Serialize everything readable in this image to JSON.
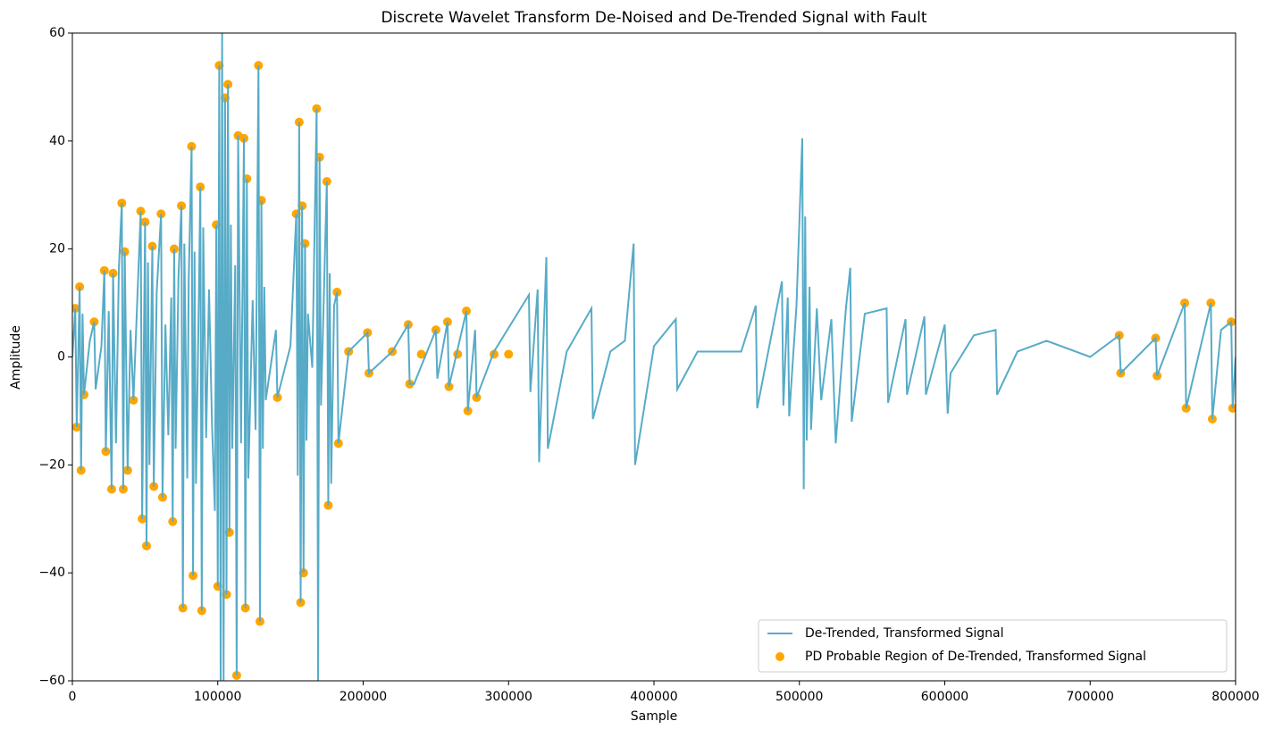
{
  "chart_data": {
    "type": "line",
    "title": "Discrete Wavelet Transform De-Noised and De-Trended Signal with Fault",
    "x_label": "Sample",
    "y_label": "Amplitude",
    "xlim": [
      0,
      800000
    ],
    "ylim": [
      -60,
      60
    ],
    "xticks": [
      0,
      100000,
      200000,
      300000,
      400000,
      500000,
      600000,
      700000,
      800000
    ],
    "yticks": [
      {
        "value": -60,
        "label": "−60"
      },
      {
        "value": -40,
        "label": "−40"
      },
      {
        "value": -20,
        "label": "−20"
      },
      0,
      20,
      40,
      60
    ],
    "legend": "lower right",
    "grid": false,
    "series": [
      {
        "name": "De-Trended, Transformed Signal",
        "type": "line",
        "color": "#57abc7",
        "x": [
          0,
          2000,
          3000,
          5000,
          6000,
          7000,
          8000,
          12000,
          15000,
          16000,
          20000,
          22000,
          23000,
          25000,
          27000,
          28000,
          30000,
          32000,
          34000,
          35000,
          36000,
          38000,
          40000,
          42000,
          47000,
          48000,
          50000,
          51000,
          52000,
          53000,
          55000,
          56000,
          58000,
          61000,
          62000,
          64000,
          66000,
          68000,
          69000,
          70000,
          71000,
          73000,
          75000,
          76000,
          77000,
          79000,
          80000,
          82000,
          83000,
          84000,
          85000,
          87000,
          88000,
          89000,
          90000,
          92000,
          94000,
          96000,
          98000,
          99000,
          100000,
          101000,
          102000,
          103000,
          104000,
          105000,
          106000,
          107000,
          108000,
          109000,
          110000,
          112000,
          113000,
          114000,
          116000,
          118000,
          119000,
          120000,
          121000,
          124000,
          126000,
          128000,
          129000,
          130000,
          131000,
          132000,
          133000,
          140000,
          141000,
          150000,
          154000,
          155000,
          156000,
          157000,
          158000,
          159000,
          160000,
          161000,
          162000,
          165000,
          168000,
          169000,
          170000,
          171000,
          175000,
          176000,
          177000,
          178000,
          180000,
          182000,
          183000,
          190000,
          203000,
          204000,
          220000,
          231000,
          232000,
          235000,
          250000,
          251000,
          258000,
          259000,
          271000,
          272000,
          277000,
          278000,
          290000,
          314000,
          315000,
          320000,
          321000,
          326000,
          327000,
          340000,
          357000,
          358000,
          370000,
          380000,
          386000,
          387000,
          400000,
          415000,
          416000,
          430000,
          460000,
          470000,
          471000,
          488000,
          489000,
          492000,
          493000,
          498000,
          502000,
          503000,
          504000,
          505000,
          507000,
          508000,
          512000,
          515000,
          522000,
          525000,
          532000,
          535000,
          536000,
          545000,
          560000,
          561000,
          573000,
          574000,
          586000,
          587000,
          600000,
          602000,
          604000,
          620000,
          635000,
          636000,
          650000,
          670000,
          700000,
          720000,
          721000,
          745000,
          746000,
          765000,
          766000,
          783000,
          784000,
          790000,
          797000,
          798000,
          800000
        ],
        "values": [
          0,
          9,
          -13,
          13,
          -21,
          8,
          -7,
          3,
          6.5,
          -6,
          2,
          16,
          -17.5,
          8.5,
          -24.5,
          15.5,
          -16,
          16.5,
          28.5,
          -24.5,
          19.5,
          -21,
          5,
          -8,
          27,
          -30,
          25,
          -35,
          17.5,
          -20,
          20.5,
          -24,
          12,
          26.5,
          -26,
          6,
          -14.5,
          11,
          -30.5,
          20,
          -17,
          15,
          28,
          -46.5,
          21,
          -22.5,
          14,
          39,
          -40.5,
          19.5,
          -23.5,
          11,
          31.5,
          -47,
          24,
          -15,
          12.5,
          -12,
          -28.5,
          24.5,
          -42.5,
          54,
          -60,
          60,
          -60,
          48,
          -44,
          50.5,
          -32.5,
          24.5,
          -17,
          17,
          -59,
          41,
          -16,
          40.5,
          -46.5,
          33,
          -22.5,
          10.5,
          -13.5,
          54,
          -49,
          29,
          -17,
          13,
          -8,
          5,
          -7.5,
          2,
          26.5,
          -22,
          43.5,
          -45.5,
          28,
          -40,
          21,
          -15.5,
          8,
          -2,
          46,
          -60,
          37,
          -9,
          32.5,
          -27.5,
          15.5,
          -23.5,
          9.5,
          12,
          -16,
          1,
          4.5,
          -3,
          1,
          6,
          -5,
          -5,
          5,
          -4,
          6.5,
          -5.5,
          8.5,
          -10,
          5,
          -7.5,
          1,
          11.5,
          -6.5,
          12.5,
          -19.5,
          18.5,
          -17,
          1,
          9,
          -11.5,
          1,
          3,
          21,
          -20,
          2,
          7,
          -6,
          1,
          1,
          9.5,
          -9.5,
          14,
          -9,
          11,
          -11,
          9.5,
          40.5,
          -24.5,
          26,
          -15.5,
          13,
          -13.5,
          9,
          -8,
          7,
          -16,
          9,
          16.5,
          -12,
          8,
          9,
          -8.5,
          7,
          -7,
          7.5,
          -7,
          6,
          -10.5,
          -3,
          4,
          5,
          -7,
          1,
          3,
          0,
          4,
          -3,
          3.5,
          -3.5,
          10,
          -9.5,
          10,
          -11.5,
          5,
          6.5,
          -9.5,
          0
        ]
      },
      {
        "name": "PD Probable Region of De-Trended, Transformed Signal",
        "type": "scatter",
        "color": "#ffa500",
        "x": [
          2000,
          3000,
          5000,
          6000,
          8000,
          15000,
          22000,
          23000,
          27000,
          28000,
          34000,
          35000,
          36000,
          38000,
          42000,
          47000,
          48000,
          50000,
          51000,
          55000,
          56000,
          61000,
          62000,
          69000,
          70000,
          75000,
          76000,
          82000,
          83000,
          88000,
          89000,
          99000,
          100000,
          101000,
          105000,
          106000,
          107000,
          108000,
          113000,
          114000,
          118000,
          119000,
          120000,
          128000,
          129000,
          130000,
          141000,
          154000,
          156000,
          157000,
          158000,
          159000,
          160000,
          168000,
          170000,
          175000,
          176000,
          182000,
          183000,
          203000,
          204000,
          231000,
          232000,
          250000,
          258000,
          259000,
          271000,
          272000,
          278000,
          190000,
          220000,
          240000,
          265000,
          290000,
          300000,
          720000,
          721000,
          745000,
          746000,
          765000,
          766000,
          783000,
          784000,
          797000,
          798000
        ],
        "values": [
          9,
          -13,
          13,
          -21,
          -7,
          6.5,
          16,
          -17.5,
          -24.5,
          15.5,
          28.5,
          -24.5,
          19.5,
          -21,
          -8,
          27,
          -30,
          25,
          -35,
          20.5,
          -24,
          26.5,
          -26,
          -30.5,
          20,
          28,
          -46.5,
          39,
          -40.5,
          31.5,
          -47,
          24.5,
          -42.5,
          54,
          48,
          -44,
          50.5,
          -32.5,
          -59,
          41,
          40.5,
          -46.5,
          33,
          54,
          -49,
          29,
          -7.5,
          26.5,
          43.5,
          -45.5,
          28,
          -40,
          21,
          46,
          37,
          32.5,
          -27.5,
          12,
          -16,
          4.5,
          -3,
          6,
          -5,
          5,
          6.5,
          -5.5,
          8.5,
          -10,
          -7.5,
          1,
          1,
          0.5,
          0.5,
          0.5,
          0.5,
          4,
          -3,
          3.5,
          -3.5,
          10,
          -9.5,
          10,
          -11.5,
          6.5,
          -9.5
        ]
      }
    ]
  }
}
